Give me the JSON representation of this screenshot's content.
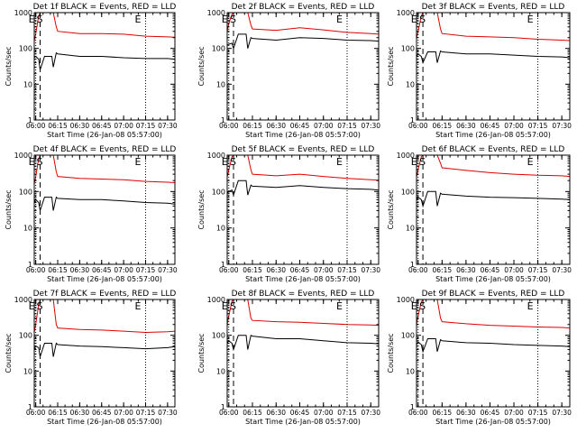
{
  "figure": {
    "colors": {
      "events": "#000000",
      "lld": "#e00000",
      "axis": "#000000",
      "background": "#ffffff"
    },
    "marker_labels": [
      "E",
      "S",
      "E"
    ]
  },
  "chart_data": [
    {
      "type": "line",
      "title": "Det 1f BLACK = Events, RED = LLD",
      "xlabel": "Start Time (26-Jan-08 05:57:00)",
      "ylabel": "Counts/sec",
      "yscale": "log",
      "ylim": [
        1,
        1000
      ],
      "xlim": [
        "05:59",
        "07:35"
      ],
      "x_tick_labels": [
        "06:00",
        "06:15",
        "06:30",
        "06:45",
        "07:00",
        "07:15",
        "07:30"
      ],
      "y_tick_labels": [
        "1",
        "10",
        "100",
        "1000"
      ],
      "markers": {
        "E1": "06:00",
        "S": "06:03",
        "E2": "07:15"
      },
      "series": [
        {
          "name": "Events",
          "color": "#000000",
          "x": [
            "05:59",
            "06:00",
            "06:02",
            "06:03",
            "06:06",
            "06:11",
            "06:12",
            "06:14",
            "06:15",
            "06:30",
            "06:45",
            "07:00",
            "07:15",
            "07:30",
            "07:35"
          ],
          "y": [
            55,
            60,
            50,
            25,
            60,
            60,
            30,
            75,
            70,
            60,
            60,
            55,
            52,
            52,
            50
          ]
        },
        {
          "name": "LLD",
          "color": "#e00000",
          "x": [
            "05:59",
            "06:00",
            "06:02",
            "06:03",
            "06:06",
            "06:11",
            "06:12",
            "06:14",
            "06:15",
            "06:30",
            "06:45",
            "07:00",
            "07:15",
            "07:30",
            "07:35"
          ],
          "y": [
            160,
            250,
            800,
            1000,
            1000,
            1000,
            1000,
            400,
            300,
            260,
            260,
            250,
            220,
            210,
            205
          ]
        }
      ]
    },
    {
      "type": "line",
      "title": "Det 2f BLACK = Events, RED = LLD",
      "xlabel": "Start Time (26-Jan-08 05:57:00)",
      "ylabel": "Counts/sec",
      "yscale": "log",
      "ylim": [
        1,
        1000
      ],
      "xlim": [
        "05:59",
        "07:35"
      ],
      "x_tick_labels": [
        "06:00",
        "06:15",
        "06:30",
        "06:45",
        "07:00",
        "07:15",
        "07:30"
      ],
      "y_tick_labels": [
        "1",
        "10",
        "100",
        "1000"
      ],
      "markers": {
        "E1": "06:00",
        "S": "06:03",
        "E2": "07:15"
      },
      "series": [
        {
          "name": "Events",
          "color": "#000000",
          "x": [
            "05:59",
            "06:00",
            "06:02",
            "06:03",
            "06:06",
            "06:11",
            "06:12",
            "06:14",
            "06:15",
            "06:30",
            "06:45",
            "07:00",
            "07:15",
            "07:30",
            "07:35"
          ],
          "y": [
            120,
            130,
            140,
            100,
            250,
            250,
            100,
            200,
            190,
            170,
            200,
            190,
            170,
            165,
            160
          ]
        },
        {
          "name": "LLD",
          "color": "#e00000",
          "x": [
            "05:59",
            "06:00",
            "06:02",
            "06:03",
            "06:06",
            "06:11",
            "06:12",
            "06:14",
            "06:15",
            "06:30",
            "06:45",
            "07:00",
            "07:15",
            "07:30",
            "07:35"
          ],
          "y": [
            300,
            500,
            900,
            1000,
            1000,
            1000,
            1000,
            450,
            350,
            320,
            380,
            330,
            280,
            260,
            250
          ]
        }
      ]
    },
    {
      "type": "line",
      "title": "Det 3f BLACK = Events, RED = LLD",
      "xlabel": "Start Time (26-Jan-08 05:57:00)",
      "ylabel": "Counts/sec",
      "yscale": "log",
      "ylim": [
        1,
        1000
      ],
      "xlim": [
        "05:59",
        "07:35"
      ],
      "x_tick_labels": [
        "06:00",
        "06:15",
        "06:30",
        "06:45",
        "07:00",
        "07:15",
        "07:30"
      ],
      "y_tick_labels": [
        "1",
        "10",
        "100",
        "1000"
      ],
      "markers": {
        "E1": "06:00",
        "S": "06:03",
        "E2": "07:15"
      },
      "series": [
        {
          "name": "Events",
          "color": "#000000",
          "x": [
            "05:59",
            "06:00",
            "06:02",
            "06:03",
            "06:06",
            "06:11",
            "06:12",
            "06:14",
            "06:15",
            "06:30",
            "06:45",
            "07:00",
            "07:15",
            "07:30",
            "07:35"
          ],
          "y": [
            60,
            70,
            60,
            40,
            80,
            80,
            40,
            85,
            80,
            70,
            70,
            65,
            60,
            58,
            55
          ]
        },
        {
          "name": "LLD",
          "color": "#e00000",
          "x": [
            "05:59",
            "06:00",
            "06:02",
            "06:03",
            "06:06",
            "06:11",
            "06:12",
            "06:14",
            "06:15",
            "06:30",
            "06:45",
            "07:00",
            "07:15",
            "07:30",
            "07:35"
          ],
          "y": [
            200,
            300,
            800,
            1000,
            1000,
            1000,
            1000,
            350,
            260,
            220,
            210,
            200,
            180,
            170,
            165
          ]
        }
      ]
    },
    {
      "type": "line",
      "title": "Det 4f BLACK = Events, RED = LLD",
      "xlabel": "Start Time (26-Jan-08 05:57:00)",
      "ylabel": "Counts/sec",
      "yscale": "log",
      "ylim": [
        1,
        1000
      ],
      "xlim": [
        "05:59",
        "07:35"
      ],
      "x_tick_labels": [
        "06:00",
        "06:15",
        "06:30",
        "06:45",
        "07:00",
        "07:15",
        "07:30"
      ],
      "y_tick_labels": [
        "1",
        "10",
        "100",
        "1000"
      ],
      "markers": {
        "E1": "06:00",
        "S": "06:03",
        "E2": "07:15"
      },
      "series": [
        {
          "name": "Events",
          "color": "#000000",
          "x": [
            "05:59",
            "06:00",
            "06:02",
            "06:03",
            "06:06",
            "06:11",
            "06:12",
            "06:14",
            "06:15",
            "06:30",
            "06:45",
            "07:00",
            "07:15",
            "07:30",
            "07:35"
          ],
          "y": [
            50,
            60,
            50,
            30,
            70,
            70,
            30,
            70,
            65,
            60,
            60,
            55,
            50,
            48,
            45
          ]
        },
        {
          "name": "LLD",
          "color": "#e00000",
          "x": [
            "05:59",
            "06:00",
            "06:02",
            "06:03",
            "06:06",
            "06:11",
            "06:12",
            "06:14",
            "06:15",
            "06:30",
            "06:45",
            "07:00",
            "07:15",
            "07:30",
            "07:35"
          ],
          "y": [
            160,
            250,
            800,
            1000,
            1000,
            1000,
            1000,
            350,
            260,
            230,
            220,
            210,
            190,
            180,
            175
          ]
        }
      ]
    },
    {
      "type": "line",
      "title": "Det 5f BLACK = Events, RED = LLD",
      "xlabel": "Start Time (26-Jan-08 05:57:00)",
      "ylabel": "Counts/sec",
      "yscale": "log",
      "ylim": [
        1,
        1000
      ],
      "xlim": [
        "05:59",
        "07:35"
      ],
      "x_tick_labels": [
        "06:00",
        "06:15",
        "06:30",
        "06:45",
        "07:00",
        "07:15",
        "07:30"
      ],
      "y_tick_labels": [
        "1",
        "10",
        "100",
        "1000"
      ],
      "markers": {
        "E1": "06:00",
        "S": "06:03",
        "E2": "07:15"
      },
      "series": [
        {
          "name": "Events",
          "color": "#000000",
          "x": [
            "05:59",
            "06:00",
            "06:02",
            "06:03",
            "06:06",
            "06:11",
            "06:12",
            "06:14",
            "06:15",
            "06:30",
            "06:45",
            "07:00",
            "07:15",
            "07:30",
            "07:35"
          ],
          "y": [
            90,
            100,
            110,
            80,
            200,
            200,
            80,
            150,
            140,
            130,
            145,
            130,
            120,
            115,
            110
          ]
        },
        {
          "name": "LLD",
          "color": "#e00000",
          "x": [
            "05:59",
            "06:00",
            "06:02",
            "06:03",
            "06:06",
            "06:11",
            "06:12",
            "06:14",
            "06:15",
            "06:30",
            "06:45",
            "07:00",
            "07:15",
            "07:30",
            "07:35"
          ],
          "y": [
            250,
            400,
            900,
            1000,
            1000,
            1000,
            1000,
            400,
            300,
            270,
            300,
            260,
            230,
            210,
            205
          ]
        }
      ]
    },
    {
      "type": "line",
      "title": "Det 6f BLACK = Events, RED = LLD",
      "xlabel": "Start Time (26-Jan-08 05:57:00)",
      "ylabel": "Counts/sec",
      "yscale": "log",
      "ylim": [
        1,
        1000
      ],
      "xlim": [
        "05:59",
        "07:35"
      ],
      "x_tick_labels": [
        "06:00",
        "06:15",
        "06:30",
        "06:45",
        "07:00",
        "07:15",
        "07:30"
      ],
      "y_tick_labels": [
        "1",
        "10",
        "100",
        "1000"
      ],
      "markers": {
        "E1": "06:00",
        "S": "06:03",
        "E2": "07:15"
      },
      "series": [
        {
          "name": "Events",
          "color": "#000000",
          "x": [
            "05:59",
            "06:00",
            "06:02",
            "06:03",
            "06:06",
            "06:11",
            "06:12",
            "06:14",
            "06:15",
            "06:30",
            "06:45",
            "07:00",
            "07:15",
            "07:30",
            "07:35"
          ],
          "y": [
            60,
            70,
            60,
            40,
            100,
            100,
            40,
            90,
            85,
            75,
            70,
            68,
            65,
            62,
            60
          ]
        },
        {
          "name": "LLD",
          "color": "#e00000",
          "x": [
            "05:59",
            "06:00",
            "06:02",
            "06:03",
            "06:06",
            "06:11",
            "06:12",
            "06:14",
            "06:15",
            "06:30",
            "06:45",
            "07:00",
            "07:15",
            "07:30",
            "07:35"
          ],
          "y": [
            250,
            400,
            900,
            1000,
            1000,
            1000,
            1000,
            600,
            450,
            380,
            330,
            300,
            280,
            270,
            260
          ]
        }
      ]
    },
    {
      "type": "line",
      "title": "Det 7f BLACK = Events, RED = LLD",
      "xlabel": "Start Time (26-Jan-08 05:57:00)",
      "ylabel": "Counts/sec",
      "yscale": "log",
      "ylim": [
        1,
        1000
      ],
      "xlim": [
        "05:59",
        "07:35"
      ],
      "x_tick_labels": [
        "06:00",
        "06:15",
        "06:30",
        "06:45",
        "07:00",
        "07:15",
        "07:30"
      ],
      "y_tick_labels": [
        "1",
        "10",
        "100",
        "1000"
      ],
      "markers": {
        "E1": "06:00",
        "S": "06:03",
        "E2": "07:15"
      },
      "series": [
        {
          "name": "Events",
          "color": "#000000",
          "x": [
            "05:59",
            "06:00",
            "06:02",
            "06:03",
            "06:06",
            "06:11",
            "06:12",
            "06:14",
            "06:15",
            "06:30",
            "06:45",
            "07:00",
            "07:15",
            "07:30",
            "07:35"
          ],
          "y": [
            40,
            50,
            45,
            25,
            60,
            60,
            25,
            60,
            55,
            50,
            48,
            45,
            42,
            45,
            48
          ]
        },
        {
          "name": "LLD",
          "color": "#e00000",
          "x": [
            "05:59",
            "06:00",
            "06:02",
            "06:03",
            "06:06",
            "06:11",
            "06:12",
            "06:14",
            "06:15",
            "06:30",
            "06:45",
            "07:00",
            "07:15",
            "07:30",
            "07:35"
          ],
          "y": [
            120,
            200,
            700,
            1000,
            1000,
            1000,
            1000,
            200,
            160,
            145,
            140,
            130,
            120,
            125,
            130
          ]
        }
      ]
    },
    {
      "type": "line",
      "title": "Det 8f BLACK = Events, RED = LLD",
      "xlabel": "Start Time (26-Jan-08 05:57:00)",
      "ylabel": "Counts/sec",
      "yscale": "log",
      "ylim": [
        1,
        1000
      ],
      "xlim": [
        "05:59",
        "07:35"
      ],
      "x_tick_labels": [
        "06:00",
        "06:15",
        "06:30",
        "06:45",
        "07:00",
        "07:15",
        "07:30"
      ],
      "y_tick_labels": [
        "1",
        "10",
        "100",
        "1000"
      ],
      "markers": {
        "E1": "06:00",
        "S": "06:03",
        "E2": "07:15"
      },
      "series": [
        {
          "name": "Events",
          "color": "#000000",
          "x": [
            "05:59",
            "06:00",
            "06:02",
            "06:03",
            "06:06",
            "06:11",
            "06:12",
            "06:14",
            "06:15",
            "06:30",
            "06:45",
            "07:00",
            "07:15",
            "07:30",
            "07:35"
          ],
          "y": [
            60,
            70,
            60,
            40,
            100,
            100,
            40,
            100,
            95,
            80,
            80,
            70,
            62,
            60,
            58
          ]
        },
        {
          "name": "LLD",
          "color": "#e00000",
          "x": [
            "05:59",
            "06:00",
            "06:02",
            "06:03",
            "06:06",
            "06:11",
            "06:12",
            "06:14",
            "06:15",
            "06:30",
            "06:45",
            "07:00",
            "07:15",
            "07:30",
            "07:35"
          ],
          "y": [
            200,
            350,
            900,
            1000,
            1000,
            1000,
            1000,
            300,
            260,
            240,
            230,
            215,
            200,
            195,
            190
          ]
        }
      ]
    },
    {
      "type": "line",
      "title": "Det 9f BLACK = Events, RED = LLD",
      "xlabel": "Start Time (26-Jan-08 05:57:00)",
      "ylabel": "Counts/sec",
      "yscale": "log",
      "ylim": [
        1,
        1000
      ],
      "xlim": [
        "05:59",
        "07:35"
      ],
      "x_tick_labels": [
        "06:00",
        "06:15",
        "06:30",
        "06:45",
        "07:00",
        "07:15",
        "07:30"
      ],
      "y_tick_labels": [
        "1",
        "10",
        "100",
        "1000"
      ],
      "markers": {
        "E1": "06:00",
        "S": "06:03",
        "E2": "07:15"
      },
      "series": [
        {
          "name": "Events",
          "color": "#000000",
          "x": [
            "05:59",
            "06:00",
            "06:02",
            "06:03",
            "06:06",
            "06:11",
            "06:12",
            "06:14",
            "06:15",
            "06:30",
            "06:45",
            "07:00",
            "07:15",
            "07:30",
            "07:35"
          ],
          "y": [
            55,
            65,
            55,
            35,
            80,
            80,
            35,
            75,
            70,
            62,
            60,
            55,
            52,
            50,
            48
          ]
        },
        {
          "name": "LLD",
          "color": "#e00000",
          "x": [
            "05:59",
            "06:00",
            "06:02",
            "06:03",
            "06:06",
            "06:11",
            "06:12",
            "06:14",
            "06:15",
            "06:30",
            "06:45",
            "07:00",
            "07:15",
            "07:30",
            "07:35"
          ],
          "y": [
            200,
            350,
            850,
            1000,
            1000,
            1000,
            1000,
            300,
            240,
            210,
            190,
            180,
            170,
            165,
            160
          ]
        }
      ]
    }
  ]
}
